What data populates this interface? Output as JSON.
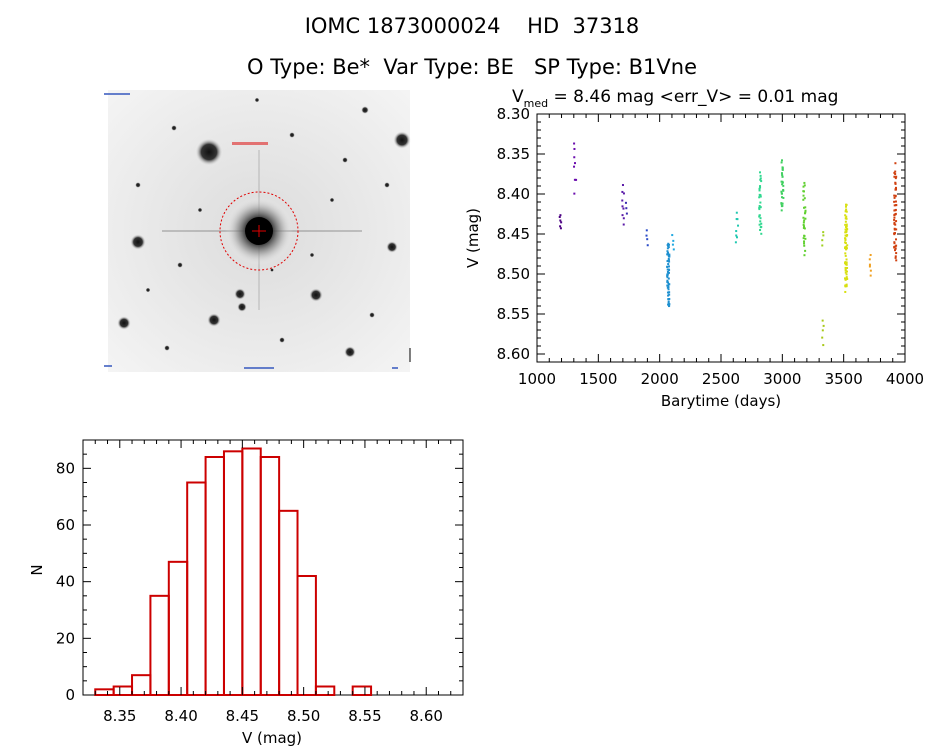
{
  "header": {
    "title_line1": "IOMC 1873000024    HD  37318",
    "title_line2": "O Type: Be*  Var Type: BE   SP Type: B1Vne"
  },
  "image_panel": {
    "caption": "Finder image of the target star (negative, stars dark on white)",
    "marker_color": "#ff0000"
  },
  "chart_data": [
    {
      "type": "scatter",
      "title_prefix": "V",
      "title_sub": "med",
      "title_rest": " = 8.46 mag <err_V> = 0.01 mag",
      "xlabel": "Barytime (days)",
      "ylabel": "V (mag)",
      "xlim": [
        1000,
        4000
      ],
      "ylim": [
        8.3,
        8.61
      ],
      "y_inverted": true,
      "xticks": [
        1000,
        1500,
        2000,
        2500,
        3000,
        3500,
        4000
      ],
      "yticks": [
        8.3,
        8.35,
        8.4,
        8.45,
        8.5,
        8.55,
        8.6
      ],
      "ytick_labels": [
        "8.30",
        "8.35",
        "8.40",
        "8.45",
        "8.50",
        "8.55",
        "8.60"
      ],
      "clusters": [
        {
          "x": 1190,
          "ymin": 8.425,
          "ymax": 8.445,
          "n": 6,
          "color": "#4b0082"
        },
        {
          "x": 1310,
          "ymin": 8.33,
          "ymax": 8.4,
          "n": 8,
          "color": "#6a0dad"
        },
        {
          "x": 1700,
          "ymin": 8.385,
          "ymax": 8.445,
          "n": 9,
          "color": "#5a1aa8"
        },
        {
          "x": 1730,
          "ymin": 8.41,
          "ymax": 8.425,
          "n": 3,
          "color": "#3b2bb0"
        },
        {
          "x": 1900,
          "ymin": 8.445,
          "ymax": 8.465,
          "n": 4,
          "color": "#2a4bc8"
        },
        {
          "x": 2070,
          "ymin": 8.455,
          "ymax": 8.545,
          "n": 60,
          "color": "#1e90d0"
        },
        {
          "x": 2110,
          "ymin": 8.45,
          "ymax": 8.47,
          "n": 4,
          "color": "#20a8e0"
        },
        {
          "x": 2630,
          "ymin": 8.42,
          "ymax": 8.465,
          "n": 8,
          "color": "#20c8b0"
        },
        {
          "x": 2820,
          "ymin": 8.37,
          "ymax": 8.455,
          "n": 30,
          "color": "#30d890"
        },
        {
          "x": 3000,
          "ymin": 8.355,
          "ymax": 8.425,
          "n": 28,
          "color": "#40d060"
        },
        {
          "x": 3180,
          "ymin": 8.38,
          "ymax": 8.485,
          "n": 30,
          "color": "#60d030"
        },
        {
          "x": 3330,
          "ymin": 8.445,
          "ymax": 8.465,
          "n": 4,
          "color": "#a0d020"
        },
        {
          "x": 3330,
          "ymin": 8.555,
          "ymax": 8.59,
          "n": 5,
          "color": "#a8c818"
        },
        {
          "x": 3520,
          "ymin": 8.41,
          "ymax": 8.53,
          "n": 70,
          "color": "#d8e010"
        },
        {
          "x": 3720,
          "ymin": 8.475,
          "ymax": 8.505,
          "n": 6,
          "color": "#f0a020"
        },
        {
          "x": 3920,
          "ymin": 8.36,
          "ymax": 8.49,
          "n": 55,
          "color": "#d04010"
        }
      ]
    },
    {
      "type": "bar",
      "histogram": true,
      "xlabel": "V (mag)",
      "ylabel": "N",
      "xlim": [
        8.32,
        8.63
      ],
      "ylim": [
        0,
        90
      ],
      "xticks": [
        8.35,
        8.4,
        8.45,
        8.5,
        8.55,
        8.6
      ],
      "xtick_labels": [
        "8.35",
        "8.40",
        "8.45",
        "8.50",
        "8.55",
        "8.60"
      ],
      "yticks": [
        0,
        20,
        40,
        60,
        80
      ],
      "bin_width": 0.015,
      "bin_edges_start": 8.33,
      "values": [
        2,
        3,
        7,
        35,
        47,
        75,
        84,
        86,
        87,
        84,
        65,
        42,
        3,
        0,
        3
      ],
      "bar_color": "#cc0000"
    }
  ]
}
